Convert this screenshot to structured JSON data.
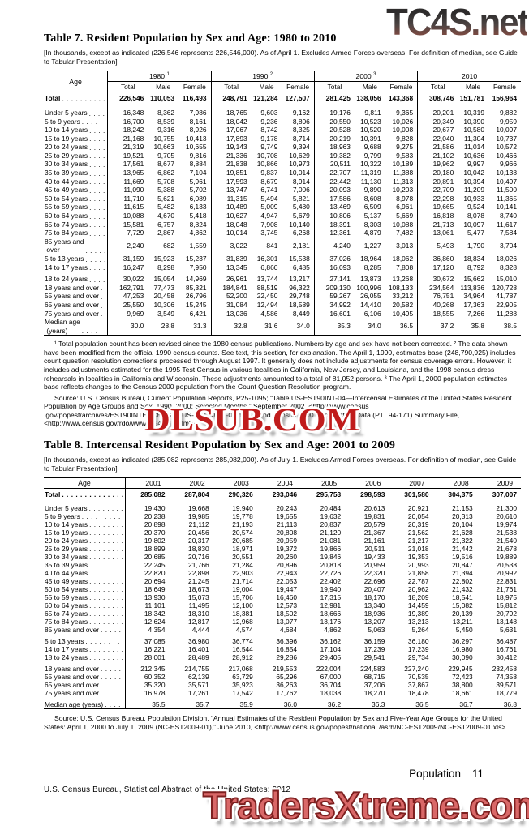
{
  "watermarks": {
    "top": "TC4S.net",
    "middle": "DLSUB.COM",
    "bottom": "TradersXtreme.com"
  },
  "table7": {
    "title": "Table 7. Resident Population by Sex and Age: 1980 to 2010",
    "bracket_note": "[In thousands, except as indicated (226,546 represents 226,546,000). As of April 1. Excludes Armed Forces overseas. For definition of median, see Guide to Tabular Presentation]",
    "age_header": "Age",
    "col_groups": [
      {
        "year": "1980",
        "sup": "1"
      },
      {
        "year": "1990",
        "sup": "2"
      },
      {
        "year": "2000",
        "sup": "3"
      },
      {
        "year": "2010",
        "sup": ""
      }
    ],
    "sub_headers": [
      "Total",
      "Male",
      "Female"
    ],
    "rows": [
      {
        "label": "Total",
        "bold": true,
        "total": true,
        "values": [
          "226,546",
          "110,053",
          "116,493",
          "248,791",
          "121,284",
          "127,507",
          "281,425",
          "138,056",
          "143,368",
          "308,746",
          "151,781",
          "156,964"
        ]
      },
      {
        "label": "Under 5 years",
        "gap": true,
        "values": [
          "16,348",
          "8,362",
          "7,986",
          "18,765",
          "9,603",
          "9,162",
          "19,176",
          "9,811",
          "9,365",
          "20,201",
          "10,319",
          "9,882"
        ]
      },
      {
        "label": "5 to 9 years",
        "values": [
          "16,700",
          "8,539",
          "8,161",
          "18,042",
          "9,236",
          "8,806",
          "20,550",
          "10,523",
          "10,026",
          "20,349",
          "10,390",
          "9,959"
        ]
      },
      {
        "label": "10 to 14 years",
        "values": [
          "18,242",
          "9,316",
          "8,926",
          "17,067",
          "8,742",
          "8,325",
          "20,528",
          "10,520",
          "10,008",
          "20,677",
          "10,580",
          "10,097"
        ]
      },
      {
        "label": "15 to 19 years",
        "values": [
          "21,168",
          "10,755",
          "10,413",
          "17,893",
          "9,178",
          "8,714",
          "20,219",
          "10,391",
          "9,828",
          "22,040",
          "11,304",
          "10,737"
        ]
      },
      {
        "label": "20 to 24 years",
        "values": [
          "21,319",
          "10,663",
          "10,655",
          "19,143",
          "9,749",
          "9,394",
          "18,963",
          "9,688",
          "9,275",
          "21,586",
          "11,014",
          "10,572"
        ]
      },
      {
        "label": "25 to 29 years",
        "values": [
          "19,521",
          "9,705",
          "9,816",
          "21,336",
          "10,708",
          "10,629",
          "19,382",
          "9,799",
          "9,583",
          "21,102",
          "10,636",
          "10,466"
        ]
      },
      {
        "label": "30 to 34 years",
        "values": [
          "17,561",
          "8,677",
          "8,884",
          "21,838",
          "10,866",
          "10,973",
          "20,511",
          "10,322",
          "10,189",
          "19,962",
          "9,997",
          "9,966"
        ]
      },
      {
        "label": "35 to 39 years",
        "values": [
          "13,965",
          "6,862",
          "7,104",
          "19,851",
          "9,837",
          "10,014",
          "22,707",
          "11,319",
          "11,388",
          "20,180",
          "10,042",
          "10,138"
        ]
      },
      {
        "label": "40 to 44 years",
        "values": [
          "11,669",
          "5,708",
          "5,961",
          "17,593",
          "8,679",
          "8,914",
          "22,442",
          "11,130",
          "11,313",
          "20,891",
          "10,394",
          "10,497"
        ]
      },
      {
        "label": "45 to 49 years",
        "values": [
          "11,090",
          "5,388",
          "5,702",
          "13,747",
          "6,741",
          "7,006",
          "20,093",
          "9,890",
          "10,203",
          "22,709",
          "11,209",
          "11,500"
        ]
      },
      {
        "label": "50 to 54 years",
        "values": [
          "11,710",
          "5,621",
          "6,089",
          "11,315",
          "5,494",
          "5,821",
          "17,586",
          "8,608",
          "8,978",
          "22,298",
          "10,933",
          "11,365"
        ]
      },
      {
        "label": "55 to 59 years",
        "values": [
          "11,615",
          "5,482",
          "6,133",
          "10,489",
          "5,009",
          "5,480",
          "13,469",
          "6,509",
          "6,961",
          "19,665",
          "9,524",
          "10,141"
        ]
      },
      {
        "label": "60 to 64 years",
        "values": [
          "10,088",
          "4,670",
          "5,418",
          "10,627",
          "4,947",
          "5,679",
          "10,806",
          "5,137",
          "5,669",
          "16,818",
          "8,078",
          "8,740"
        ]
      },
      {
        "label": "65 to 74 years",
        "values": [
          "15,581",
          "6,757",
          "8,824",
          "18,048",
          "7,908",
          "10,140",
          "18,391",
          "8,303",
          "10,088",
          "21,713",
          "10,097",
          "11,617"
        ]
      },
      {
        "label": "75 to 84 years",
        "values": [
          "7,729",
          "2,867",
          "4,862",
          "10,014",
          "3,745",
          "6,268",
          "12,361",
          "4,879",
          "7,482",
          "13,061",
          "5,477",
          "7,584"
        ]
      },
      {
        "label": "85 years and\n over",
        "values": [
          "2,240",
          "682",
          "1,559",
          "3,022",
          "841",
          "2,181",
          "4,240",
          "1,227",
          "3,013",
          "5,493",
          "1,790",
          "3,704"
        ]
      },
      {
        "label": "5 to 13 years",
        "values": [
          "31,159",
          "15,923",
          "15,237",
          "31,839",
          "16,301",
          "15,538",
          "37,026",
          "18,964",
          "18,062",
          "36,860",
          "18,834",
          "18,026"
        ]
      },
      {
        "label": "14 to 17 years",
        "values": [
          "16,247",
          "8,298",
          "7,950",
          "13,345",
          "6,860",
          "6,485",
          "16,093",
          "8,285",
          "7,808",
          "17,120",
          "8,792",
          "8,328"
        ]
      },
      {
        "label": "18 to 24 years",
        "gap": true,
        "values": [
          "30,022",
          "15,054",
          "14,969",
          "26,961",
          "13,744",
          "13,217",
          "27,141",
          "13,873",
          "13,268",
          "30,672",
          "15,662",
          "15,010"
        ]
      },
      {
        "label": "18 years and over",
        "values": [
          "162,791",
          "77,473",
          "85,321",
          "184,841",
          "88,519",
          "96,322",
          "209,130",
          "100,996",
          "108,133",
          "234,564",
          "113,836",
          "120,728"
        ]
      },
      {
        "label": "55 years and over",
        "values": [
          "47,253",
          "20,458",
          "26,796",
          "52,200",
          "22,450",
          "29,748",
          "59,267",
          "26,055",
          "33,212",
          "76,751",
          "34,964",
          "41,787"
        ]
      },
      {
        "label": "65 years and over",
        "values": [
          "25,550",
          "10,306",
          "15,245",
          "31,084",
          "12,494",
          "18,589",
          "34,992",
          "14,410",
          "20,582",
          "40,268",
          "17,363",
          "22,905"
        ]
      },
      {
        "label": "75 years and over",
        "values": [
          "9,969",
          "3,549",
          "6,421",
          "13,036",
          "4,586",
          "8,449",
          "16,601",
          "6,106",
          "10,495",
          "18,555",
          "7,266",
          "11,288"
        ]
      },
      {
        "label": "Median age\n (years)",
        "values": [
          "30.0",
          "28.8",
          "31.3",
          "32.8",
          "31.6",
          "34.0",
          "35.3",
          "34.0",
          "36.5",
          "37.2",
          "35.8",
          "38.5"
        ]
      }
    ],
    "footnote": "¹ Total population count has been revised since the 1980 census publications. Numbers by age and sex have not been corrected. ² The data shown have been modified from the official 1990 census counts. See text, this section, for explanation. The April 1, 1990, estimates base (248,790,925) includes count question resolution corrections processed through August 1997. It generally does not include adjustments for census coverage errors. However, it includes adjustments estimated for the 1995 Test Census in various localities in California, New Jersey, and Louisiana, and the 1998 census dress rehearsals in localities in California and Wisconsin. These adjustments amounted to a total of 81,052 persons. ³ The April 1, 2000 population estimates base reflects changes to the Census 2000 population from the Count Question Resolution program.",
    "source": "Source: U.S. Census Bureau, Current Population Reports, P25-1095; “Table US-EST90INT-04—Intercensal Estimates of the United States Resident Population by Age Groups and Sex, 1990–2000: Selected Months,” September 2002, <http://www.census .gov/popest/archives/EST90INTERCENSAL/US-EST90INT-04.html>; and Census 2000 Redistricting Data (P.L. 94-171) Summary File, <http://www.census.gov/rdo/www/pl94-171.html>."
  },
  "table8": {
    "title": "Table 8. Intercensal Resident Population by Sex and Age: 2001 to 2009",
    "bracket_note": "[In thousands, except as indicated (285,082 represents 285,082,000). As of July 1. Excludes Armed Forces overseas. For definition of median, see Guide to Tabular Presentation]",
    "age_header": "Age",
    "years": [
      "2001",
      "2002",
      "2003",
      "2004",
      "2005",
      "2006",
      "2007",
      "2008",
      "2009"
    ],
    "rows": [
      {
        "label": "Total",
        "bold": true,
        "total": true,
        "values": [
          "285,082",
          "287,804",
          "290,326",
          "293,046",
          "295,753",
          "298,593",
          "301,580",
          "304,375",
          "307,007"
        ]
      },
      {
        "label": "Under 5 years",
        "gap": true,
        "values": [
          "19,430",
          "19,668",
          "19,940",
          "20,243",
          "20,484",
          "20,613",
          "20,921",
          "21,153",
          "21,300"
        ]
      },
      {
        "label": "5 to 9 years",
        "values": [
          "20,238",
          "19,985",
          "19,778",
          "19,655",
          "19,632",
          "19,831",
          "20,054",
          "20,313",
          "20,610"
        ]
      },
      {
        "label": "10 to 14 years",
        "values": [
          "20,898",
          "21,112",
          "21,193",
          "21,113",
          "20,837",
          "20,579",
          "20,319",
          "20,104",
          "19,974"
        ]
      },
      {
        "label": "15 to 19 years",
        "values": [
          "20,370",
          "20,456",
          "20,574",
          "20,808",
          "21,120",
          "21,367",
          "21,562",
          "21,628",
          "21,538"
        ]
      },
      {
        "label": "20 to 24 years",
        "values": [
          "19,802",
          "20,317",
          "20,685",
          "20,959",
          "21,081",
          "21,161",
          "21,217",
          "21,322",
          "21,540"
        ]
      },
      {
        "label": "25 to 29 years",
        "values": [
          "18,899",
          "18,830",
          "18,971",
          "19,372",
          "19,866",
          "20,511",
          "21,018",
          "21,442",
          "21,678"
        ]
      },
      {
        "label": "30 to 34 years",
        "values": [
          "20,685",
          "20,716",
          "20,551",
          "20,260",
          "19,846",
          "19,433",
          "19,353",
          "19,516",
          "19,889"
        ]
      },
      {
        "label": "35 to 39 years",
        "values": [
          "22,245",
          "21,766",
          "21,284",
          "20,896",
          "20,818",
          "20,959",
          "20,993",
          "20,847",
          "20,538"
        ]
      },
      {
        "label": "40 to 44 years",
        "values": [
          "22,820",
          "22,898",
          "22,903",
          "22,943",
          "22,726",
          "22,320",
          "21,858",
          "21,394",
          "20,992"
        ]
      },
      {
        "label": "45 to 49 years",
        "values": [
          "20,694",
          "21,245",
          "21,714",
          "22,053",
          "22,402",
          "22,696",
          "22,787",
          "22,802",
          "22,831"
        ]
      },
      {
        "label": "50 to 54 years",
        "values": [
          "18,649",
          "18,673",
          "19,004",
          "19,447",
          "19,940",
          "20,407",
          "20,962",
          "21,432",
          "21,761"
        ]
      },
      {
        "label": "55 to 59 years",
        "values": [
          "13,930",
          "15,073",
          "15,706",
          "16,460",
          "17,315",
          "18,170",
          "18,209",
          "18,541",
          "18,975"
        ]
      },
      {
        "label": "60 to 64 years",
        "values": [
          "11,101",
          "11,495",
          "12,100",
          "12,573",
          "12,981",
          "13,340",
          "14,459",
          "15,082",
          "15,812"
        ]
      },
      {
        "label": "65 to 74 years",
        "values": [
          "18,342",
          "18,310",
          "18,381",
          "18,502",
          "18,666",
          "18,936",
          "19,389",
          "20,139",
          "20,792"
        ]
      },
      {
        "label": "75 to 84 years",
        "values": [
          "12,624",
          "12,817",
          "12,968",
          "13,077",
          "13,176",
          "13,207",
          "13,213",
          "13,211",
          "13,148"
        ]
      },
      {
        "label": "85 years and over",
        "values": [
          "4,354",
          "4,444",
          "4,574",
          "4,684",
          "4,862",
          "5,063",
          "5,264",
          "5,450",
          "5,631"
        ]
      },
      {
        "label": "5 to 13 years",
        "gap": true,
        "values": [
          "37,085",
          "36,980",
          "36,774",
          "36,396",
          "36,162",
          "36,159",
          "36,180",
          "36,297",
          "36,487"
        ]
      },
      {
        "label": "14 to 17 years",
        "values": [
          "16,221",
          "16,401",
          "16,544",
          "16,854",
          "17,104",
          "17,239",
          "17,239",
          "16,980",
          "16,761"
        ]
      },
      {
        "label": "18 to 24 years",
        "values": [
          "28,001",
          "28,489",
          "28,912",
          "29,286",
          "29,405",
          "29,541",
          "29,734",
          "30,090",
          "30,412"
        ]
      },
      {
        "label": "18 years and over",
        "gap": true,
        "values": [
          "212,345",
          "214,755",
          "217,068",
          "219,553",
          "222,004",
          "224,583",
          "227,240",
          "229,945",
          "232,458"
        ]
      },
      {
        "label": "55 years and over",
        "values": [
          "60,352",
          "62,139",
          "63,729",
          "65,296",
          "67,000",
          "68,715",
          "70,535",
          "72,423",
          "74,358"
        ]
      },
      {
        "label": "65 years and over",
        "values": [
          "35,320",
          "35,571",
          "35,923",
          "36,263",
          "36,704",
          "37,206",
          "37,867",
          "38,800",
          "39,571"
        ]
      },
      {
        "label": "75 years and over",
        "values": [
          "16,978",
          "17,261",
          "17,542",
          "17,762",
          "18,038",
          "18,270",
          "18,478",
          "18,661",
          "18,779"
        ]
      },
      {
        "label": "Median age (years)",
        "gap": true,
        "values": [
          "35.5",
          "35.7",
          "35.9",
          "36.0",
          "36.2",
          "36.3",
          "36.5",
          "36.7",
          "36.8"
        ]
      }
    ],
    "source": "Source: U.S. Census Bureau, Population Division, “Annual Estimates of the Resident Population by Sex and Five-Year Age Groups for the United States: April 1, 2000 to July 1, 2009 (NC-EST2009-01),” June 2010, <http://www.census.gov/popest/national /asrh/NC-EST2009/NC-EST2009-01.xls>."
  },
  "footer": {
    "section": "Population",
    "page": "11",
    "imprint": "U.S. Census Bureau, Statistical Abstract of the United States: 2012"
  }
}
